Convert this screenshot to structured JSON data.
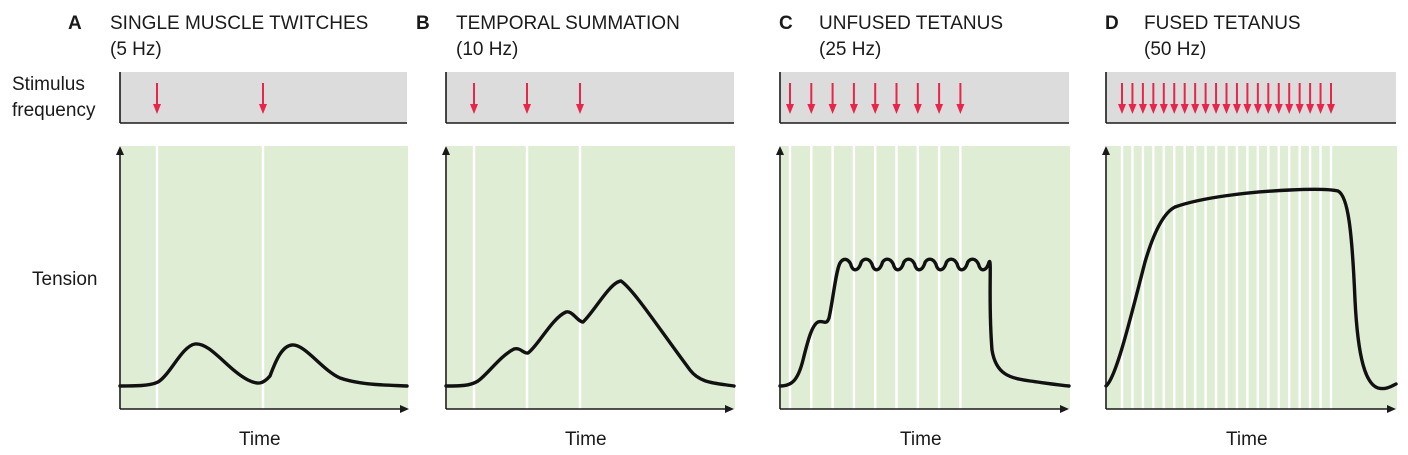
{
  "labels": {
    "stimulus_line1": "Stimulus",
    "stimulus_line2": "frequency",
    "tension": "Tension",
    "time": "Time"
  },
  "colors": {
    "stimulus_arrow": "#e8254a",
    "plot_background": "#dfedd5",
    "stimulus_background": "#dcdcdc",
    "curve": "#111111"
  },
  "panels": [
    {
      "letter": "A",
      "title": "SINGLE MUSCLE TWITCHES",
      "frequency": "(5 Hz)",
      "stimulus_count": 2,
      "tension_level": "separate twitches"
    },
    {
      "letter": "B",
      "title": "TEMPORAL SUMMATION",
      "frequency": "(10 Hz)",
      "stimulus_count": 3,
      "tension_level": "summated twitches"
    },
    {
      "letter": "C",
      "title": "UNFUSED TETANUS",
      "frequency": "(25 Hz)",
      "stimulus_count": 9,
      "tension_level": "rippled plateau"
    },
    {
      "letter": "D",
      "title": "FUSED TETANUS",
      "frequency": "(50 Hz)",
      "stimulus_count": 21,
      "tension_level": "smooth plateau"
    }
  ]
}
